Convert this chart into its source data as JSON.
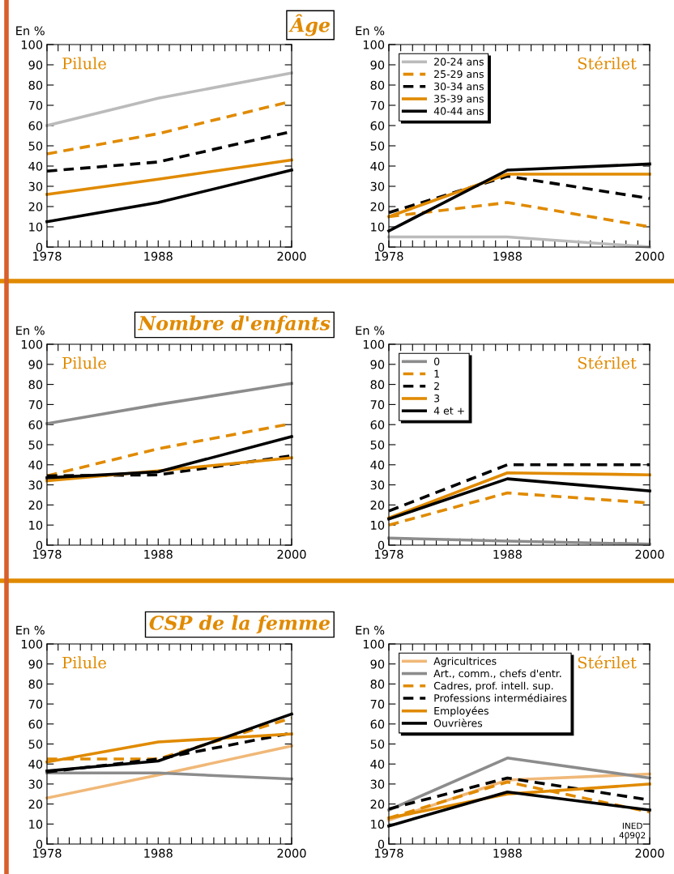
{
  "chart_data": [
    {
      "type": "line",
      "title": "Âge",
      "ylabel": "En %",
      "annotations": [
        "Pilule"
      ],
      "xlim": [
        1978,
        2000
      ],
      "ylim": [
        0,
        100
      ],
      "yticks": [
        0,
        10,
        20,
        30,
        40,
        50,
        60,
        70,
        80,
        90,
        100
      ],
      "xticks": [
        1978,
        {
          "value": 1979,
          "label": null
        },
        {
          "value": 1980,
          "label": null
        },
        {
          "value": 1981,
          "label": null
        },
        {
          "value": 1982,
          "label": null
        },
        {
          "value": 1983,
          "label": null
        },
        {
          "value": 1984,
          "label": null
        },
        {
          "value": 1985,
          "label": null
        },
        {
          "value": 1986,
          "label": null
        },
        {
          "value": 1987,
          "label": null
        },
        1988,
        {
          "value": 1989,
          "label": null
        },
        {
          "value": 1990,
          "label": null
        },
        {
          "value": 1991,
          "label": null
        },
        {
          "value": 1992,
          "label": null
        },
        {
          "value": 1993,
          "label": null
        },
        {
          "value": 1994,
          "label": null
        },
        {
          "value": 1995,
          "label": null
        },
        {
          "value": 1996,
          "label": null
        },
        {
          "value": 1997,
          "label": null
        },
        {
          "value": 1998,
          "label": null
        },
        {
          "value": 1999,
          "label": null
        },
        2000
      ],
      "x": [
        1978,
        1988,
        2000
      ],
      "legend": false,
      "series": [
        {
          "color": "#bbbbbb",
          "line_style": "solid",
          "values": [
            60,
            73.5,
            86
          ]
        },
        {
          "color": "#e08a00",
          "line_style": "dashed",
          "values": [
            46,
            56,
            72
          ]
        },
        {
          "color": "#000000",
          "line_style": "dashed",
          "values": [
            37.5,
            42,
            57
          ]
        },
        {
          "color": "#e08a00",
          "line_style": "solid",
          "values": [
            26,
            33.5,
            43
          ]
        },
        {
          "color": "#000000",
          "line_style": "solid",
          "values": [
            12.5,
            22,
            38
          ]
        }
      ]
    },
    {
      "type": "line",
      "ylabel": "En %",
      "annotations": [
        "Stérilet"
      ],
      "xlim": [
        1978,
        2000
      ],
      "ylim": [
        0,
        100
      ],
      "yticks": [
        0,
        10,
        20,
        30,
        40,
        50,
        60,
        70,
        80,
        90,
        100
      ],
      "xticks": [
        1978,
        {
          "value": 1979,
          "label": null
        },
        {
          "value": 1980,
          "label": null
        },
        {
          "value": 1981,
          "label": null
        },
        {
          "value": 1982,
          "label": null
        },
        {
          "value": 1983,
          "label": null
        },
        {
          "value": 1984,
          "label": null
        },
        {
          "value": 1985,
          "label": null
        },
        {
          "value": 1986,
          "label": null
        },
        {
          "value": 1987,
          "label": null
        },
        1988,
        {
          "value": 1989,
          "label": null
        },
        {
          "value": 1990,
          "label": null
        },
        {
          "value": 1991,
          "label": null
        },
        {
          "value": 1992,
          "label": null
        },
        {
          "value": 1993,
          "label": null
        },
        {
          "value": 1994,
          "label": null
        },
        {
          "value": 1995,
          "label": null
        },
        {
          "value": 1996,
          "label": null
        },
        {
          "value": 1997,
          "label": null
        },
        {
          "value": 1998,
          "label": null
        },
        {
          "value": 1999,
          "label": null
        },
        2000
      ],
      "x": [
        1978,
        1988,
        2000
      ],
      "legend": "top left",
      "series": [
        {
          "name": "20-24 ans",
          "color": "#bbbbbb",
          "line_style": "solid",
          "values": [
            5,
            5,
            0
          ]
        },
        {
          "name": "25-29 ans",
          "color": "#e08a00",
          "line_style": "dashed",
          "values": [
            15,
            22,
            10
          ]
        },
        {
          "name": "30-34 ans",
          "color": "#000000",
          "line_style": "dashed",
          "values": [
            17,
            35,
            24
          ]
        },
        {
          "name": "35-39 ans",
          "color": "#e08a00",
          "line_style": "solid",
          "values": [
            15,
            36,
            36
          ]
        },
        {
          "name": "40-44 ans",
          "color": "#000000",
          "line_style": "solid",
          "values": [
            8,
            38,
            41
          ]
        }
      ]
    },
    {
      "type": "line",
      "title": "Nombre d'enfants",
      "ylabel": "En %",
      "annotations": [
        "Pilule"
      ],
      "xlim": [
        1978,
        2000
      ],
      "ylim": [
        0,
        100
      ],
      "yticks": [
        0,
        10,
        20,
        30,
        40,
        50,
        60,
        70,
        80,
        90,
        100
      ],
      "xticks": [
        1978,
        {
          "value": 1979,
          "label": null
        },
        {
          "value": 1980,
          "label": null
        },
        {
          "value": 1981,
          "label": null
        },
        {
          "value": 1982,
          "label": null
        },
        {
          "value": 1983,
          "label": null
        },
        {
          "value": 1984,
          "label": null
        },
        {
          "value": 1985,
          "label": null
        },
        {
          "value": 1986,
          "label": null
        },
        {
          "value": 1987,
          "label": null
        },
        1988,
        {
          "value": 1989,
          "label": null
        },
        {
          "value": 1990,
          "label": null
        },
        {
          "value": 1991,
          "label": null
        },
        {
          "value": 1992,
          "label": null
        },
        {
          "value": 1993,
          "label": null
        },
        {
          "value": 1994,
          "label": null
        },
        {
          "value": 1995,
          "label": null
        },
        {
          "value": 1996,
          "label": null
        },
        {
          "value": 1997,
          "label": null
        },
        {
          "value": 1998,
          "label": null
        },
        {
          "value": 1999,
          "label": null
        },
        2000
      ],
      "x": [
        1978,
        1988,
        2000
      ],
      "legend": false,
      "series": [
        {
          "color": "#8c8c8c",
          "line_style": "solid",
          "values": [
            60.5,
            70,
            80.5
          ]
        },
        {
          "color": "#e08a00",
          "line_style": "dashed",
          "values": [
            34.5,
            48,
            60.5
          ]
        },
        {
          "color": "#000000",
          "line_style": "dashed",
          "values": [
            34.5,
            35,
            44.5
          ]
        },
        {
          "color": "#e08a00",
          "line_style": "solid",
          "values": [
            32,
            37,
            43.5
          ]
        },
        {
          "color": "#000000",
          "line_style": "solid",
          "values": [
            33.5,
            36.5,
            54
          ]
        }
      ]
    },
    {
      "type": "line",
      "ylabel": "En %",
      "annotations": [
        "Stérilet"
      ],
      "xlim": [
        1978,
        2000
      ],
      "ylim": [
        0,
        100
      ],
      "yticks": [
        0,
        10,
        20,
        30,
        40,
        50,
        60,
        70,
        80,
        90,
        100
      ],
      "xticks": [
        1978,
        {
          "value": 1979,
          "label": null
        },
        {
          "value": 1980,
          "label": null
        },
        {
          "value": 1981,
          "label": null
        },
        {
          "value": 1982,
          "label": null
        },
        {
          "value": 1983,
          "label": null
        },
        {
          "value": 1984,
          "label": null
        },
        {
          "value": 1985,
          "label": null
        },
        {
          "value": 1986,
          "label": null
        },
        {
          "value": 1987,
          "label": null
        },
        1988,
        {
          "value": 1989,
          "label": null
        },
        {
          "value": 1990,
          "label": null
        },
        {
          "value": 1991,
          "label": null
        },
        {
          "value": 1992,
          "label": null
        },
        {
          "value": 1993,
          "label": null
        },
        {
          "value": 1994,
          "label": null
        },
        {
          "value": 1995,
          "label": null
        },
        {
          "value": 1996,
          "label": null
        },
        {
          "value": 1997,
          "label": null
        },
        {
          "value": 1998,
          "label": null
        },
        {
          "value": 1999,
          "label": null
        },
        2000
      ],
      "x": [
        1978,
        1988,
        2000
      ],
      "legend": "top left",
      "series": [
        {
          "name": "0",
          "color": "#8c8c8c",
          "line_style": "solid",
          "values": [
            3.5,
            2,
            0.5
          ]
        },
        {
          "name": "1",
          "color": "#e08a00",
          "line_style": "dashed",
          "values": [
            10,
            26,
            21
          ]
        },
        {
          "name": "2",
          "color": "#000000",
          "line_style": "dashed",
          "values": [
            17,
            40,
            40
          ]
        },
        {
          "name": "3",
          "color": "#e08a00",
          "line_style": "solid",
          "values": [
            13.5,
            36,
            35
          ]
        },
        {
          "name": "4 et +",
          "color": "#000000",
          "line_style": "solid",
          "values": [
            13,
            33,
            27
          ]
        }
      ]
    },
    {
      "type": "line",
      "title": "CSP de la femme",
      "ylabel": "En %",
      "annotations": [
        "Pilule"
      ],
      "xlim": [
        1978,
        2000
      ],
      "ylim": [
        0,
        100
      ],
      "yticks": [
        0,
        10,
        20,
        30,
        40,
        50,
        60,
        70,
        80,
        90,
        100
      ],
      "xticks": [
        1978,
        {
          "value": 1979,
          "label": null
        },
        {
          "value": 1980,
          "label": null
        },
        {
          "value": 1981,
          "label": null
        },
        {
          "value": 1982,
          "label": null
        },
        {
          "value": 1983,
          "label": null
        },
        {
          "value": 1984,
          "label": null
        },
        {
          "value": 1985,
          "label": null
        },
        {
          "value": 1986,
          "label": null
        },
        {
          "value": 1987,
          "label": null
        },
        1988,
        {
          "value": 1989,
          "label": null
        },
        {
          "value": 1990,
          "label": null
        },
        {
          "value": 1991,
          "label": null
        },
        {
          "value": 1992,
          "label": null
        },
        {
          "value": 1993,
          "label": null
        },
        {
          "value": 1994,
          "label": null
        },
        {
          "value": 1995,
          "label": null
        },
        {
          "value": 1996,
          "label": null
        },
        {
          "value": 1997,
          "label": null
        },
        {
          "value": 1998,
          "label": null
        },
        {
          "value": 1999,
          "label": null
        },
        2000
      ],
      "x": [
        1978,
        1988,
        2000
      ],
      "legend": false,
      "series": [
        {
          "color": "#f0b878",
          "line_style": "solid",
          "values": [
            23,
            34.5,
            49
          ]
        },
        {
          "color": "#8c8c8c",
          "line_style": "solid",
          "values": [
            35.5,
            35.5,
            32.5
          ]
        },
        {
          "color": "#e08a00",
          "line_style": "dashed",
          "values": [
            42.5,
            42.5,
            63
          ]
        },
        {
          "color": "#000000",
          "line_style": "dashed",
          "values": [
            36,
            42.5,
            55.5
          ]
        },
        {
          "color": "#e08a00",
          "line_style": "solid",
          "values": [
            41,
            51,
            55
          ]
        },
        {
          "color": "#000000",
          "line_style": "solid",
          "values": [
            36.5,
            41.5,
            65
          ]
        }
      ]
    },
    {
      "type": "line",
      "ylabel": "En %",
      "annotations": [
        "Stérilet",
        "INED\n40902"
      ],
      "xlim": [
        1978,
        2000
      ],
      "ylim": [
        0,
        100
      ],
      "yticks": [
        0,
        10,
        20,
        30,
        40,
        50,
        60,
        70,
        80,
        90,
        100
      ],
      "xticks": [
        1978,
        {
          "value": 1979,
          "label": null
        },
        {
          "value": 1980,
          "label": null
        },
        {
          "value": 1981,
          "label": null
        },
        {
          "value": 1982,
          "label": null
        },
        {
          "value": 1983,
          "label": null
        },
        {
          "value": 1984,
          "label": null
        },
        {
          "value": 1985,
          "label": null
        },
        {
          "value": 1986,
          "label": null
        },
        {
          "value": 1987,
          "label": null
        },
        1988,
        {
          "value": 1989,
          "label": null
        },
        {
          "value": 1990,
          "label": null
        },
        {
          "value": 1991,
          "label": null
        },
        {
          "value": 1992,
          "label": null
        },
        {
          "value": 1993,
          "label": null
        },
        {
          "value": 1994,
          "label": null
        },
        {
          "value": 1995,
          "label": null
        },
        {
          "value": 1996,
          "label": null
        },
        {
          "value": 1997,
          "label": null
        },
        {
          "value": 1998,
          "label": null
        },
        {
          "value": 1999,
          "label": null
        },
        2000
      ],
      "x": [
        1978,
        1988,
        2000
      ],
      "legend": "top left",
      "series": [
        {
          "name": "Agricultrices",
          "color": "#f0b878",
          "line_style": "solid",
          "values": [
            12,
            32,
            35
          ]
        },
        {
          "name": "Art., comm., chefs d'entr.",
          "color": "#8c8c8c",
          "line_style": "solid",
          "values": [
            17,
            43,
            33
          ]
        },
        {
          "name": "Cadres, prof. intell. sup.",
          "color": "#e08a00",
          "line_style": "dashed",
          "values": [
            13,
            31,
            16
          ]
        },
        {
          "name": "Professions intermédiaires",
          "color": "#000000",
          "line_style": "dashed",
          "values": [
            17.5,
            33,
            22
          ]
        },
        {
          "name": "Employées",
          "color": "#e08a00",
          "line_style": "solid",
          "values": [
            13,
            25,
            30
          ]
        },
        {
          "name": "Ouvrières",
          "color": "#000000",
          "line_style": "solid",
          "values": [
            9,
            26,
            17
          ]
        }
      ]
    }
  ]
}
